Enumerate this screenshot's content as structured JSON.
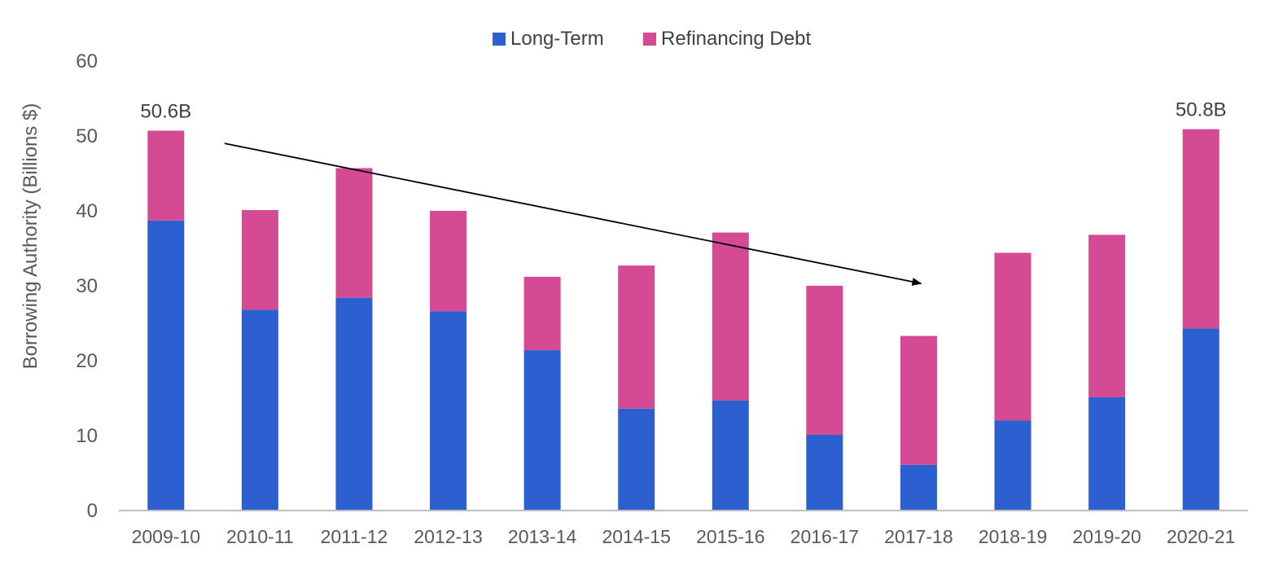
{
  "chart_data": {
    "type": "bar",
    "stacked": true,
    "categories": [
      "2009-10",
      "2010-11",
      "2011-12",
      "2012-13",
      "2013-14",
      "2014-15",
      "2015-16",
      "2016-17",
      "2017-18",
      "2018-19",
      "2019-20",
      "2020-21"
    ],
    "series": [
      {
        "name": "Long-Term",
        "color": "#2c5fcf",
        "values": [
          38.6,
          26.7,
          28.3,
          26.5,
          21.3,
          13.5,
          14.6,
          10.0,
          6.0,
          11.9,
          15.0,
          24.2
        ]
      },
      {
        "name": "Refinancing Debt",
        "color": "#d44b93",
        "values": [
          12.0,
          13.3,
          17.3,
          13.4,
          9.8,
          19.1,
          22.4,
          19.9,
          17.2,
          22.4,
          21.7,
          26.6
        ]
      }
    ],
    "ylabel": "Borrowing Authority (Billions $)",
    "xlabel": "",
    "ylim": [
      0,
      60
    ],
    "yticks": [
      0,
      10,
      20,
      30,
      40,
      50,
      60
    ],
    "grid": false,
    "legend_position": "top-center",
    "annotations": [
      {
        "text": "50.6B",
        "category": "2009-10"
      },
      {
        "text": "50.8B",
        "category": "2020-21"
      }
    ],
    "trend_arrow": {
      "from": {
        "category": "2009-10",
        "position": "right-side",
        "y": 48.9
      },
      "to": {
        "category": "2017-18",
        "y": 30.2
      },
      "color": "#000000"
    }
  }
}
